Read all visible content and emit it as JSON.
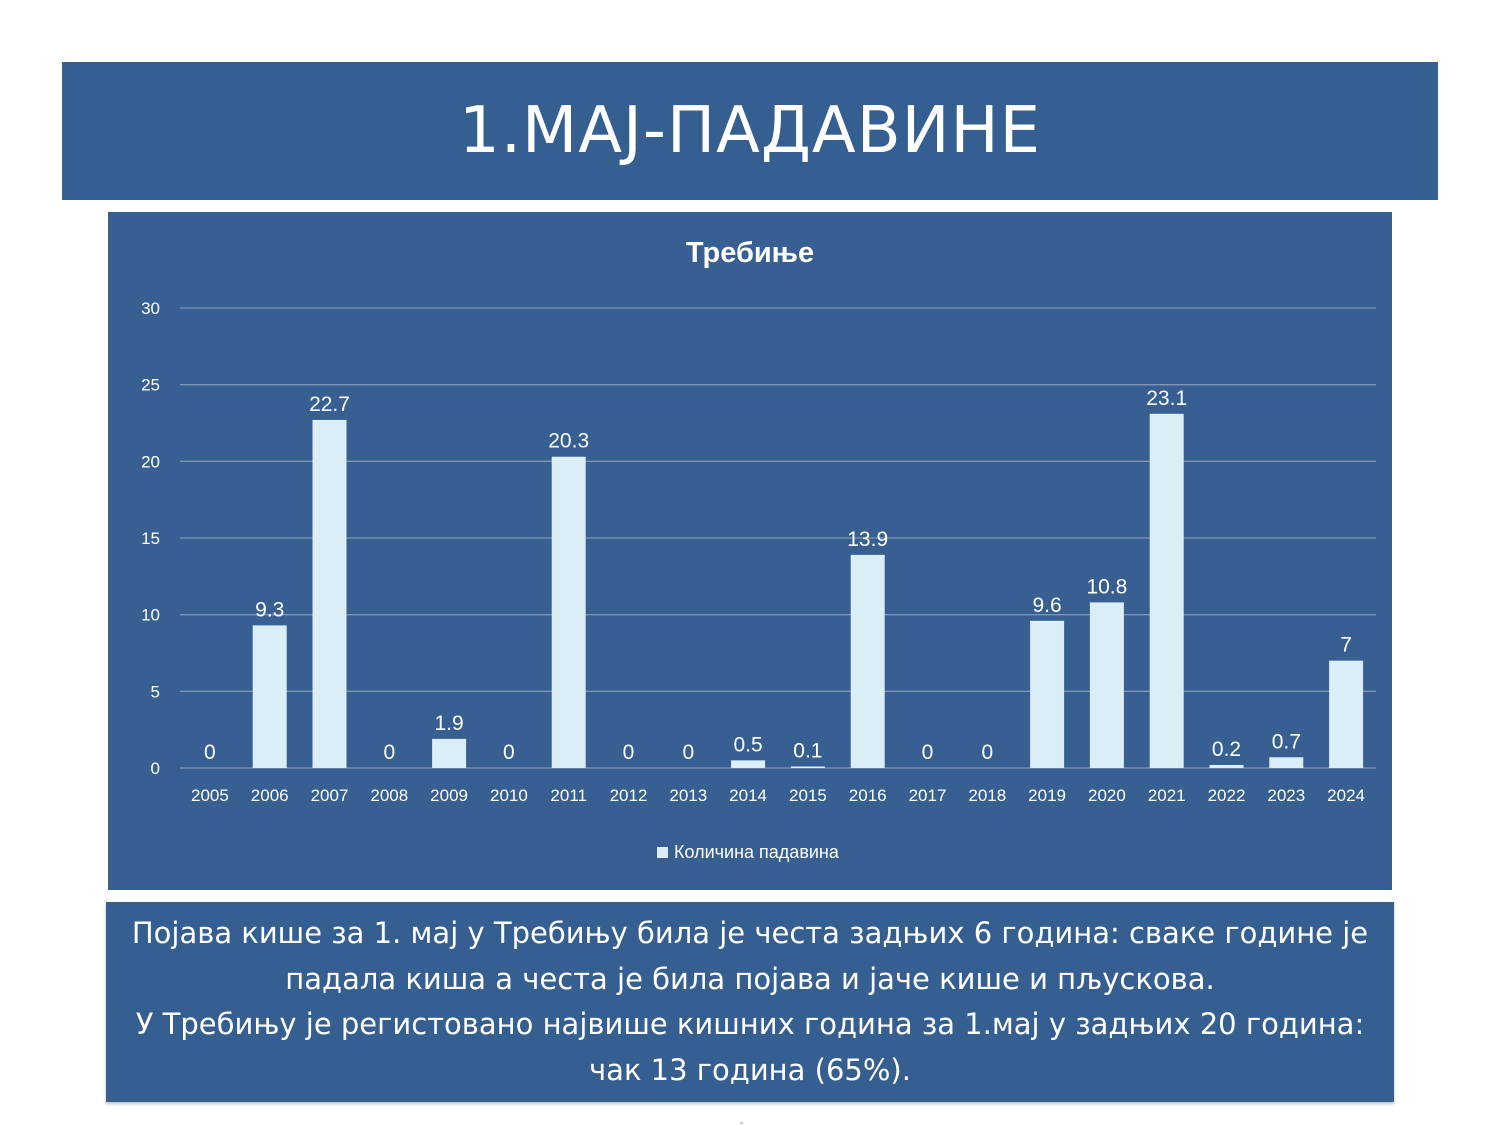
{
  "slide_title": "1.МАЈ-ПАДАВИНЕ",
  "note": {
    "paragraph1": "Појава кише за 1. мај у Требињу била је честа задњих 6 година: сваке године је падала киша а честа је била појава и јаче кише и пљускова.",
    "paragraph2": "У Требињу је регистовано највише кишних година за 1.мај у задњих 20 година: чак 13 година (65%)."
  },
  "colors": {
    "panel": "#375f92",
    "bar": "#dbedf5",
    "gridline": "#7f95b6",
    "text": "#ffffff"
  },
  "chart_data": {
    "type": "bar",
    "title": "Требиње",
    "categories": [
      "2005",
      "2006",
      "2007",
      "2008",
      "2009",
      "2010",
      "2011",
      "2012",
      "2013",
      "2014",
      "2015",
      "2016",
      "2017",
      "2018",
      "2019",
      "2020",
      "2021",
      "2022",
      "2023",
      "2024"
    ],
    "series": [
      {
        "name": "Количина падавина",
        "values": [
          0,
          9.3,
          22.7,
          0,
          1.9,
          0,
          20.3,
          0,
          0,
          0.5,
          0.1,
          13.9,
          0,
          0,
          9.6,
          10.8,
          23.1,
          0.2,
          0.7,
          7
        ]
      }
    ],
    "ylim": [
      0,
      30
    ],
    "yticks": [
      0,
      5,
      10,
      15,
      20,
      25,
      30
    ],
    "grid": true,
    "legend": "bottom-center",
    "data_labels": true
  }
}
